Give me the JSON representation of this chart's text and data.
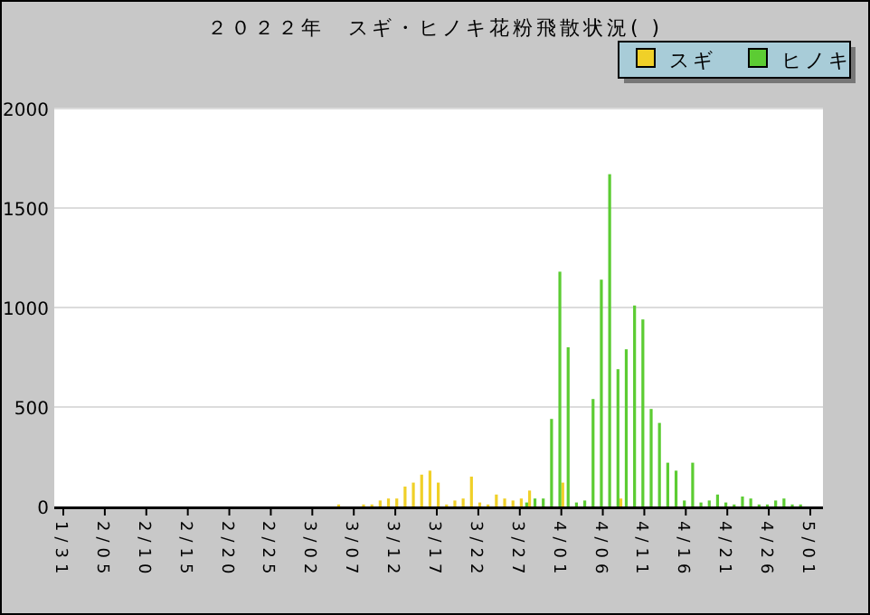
{
  "chart_data": {
    "type": "bar",
    "title": "２０２２年　スギ・ヒノキ花粉飛散状況( )",
    "categories": [
      "1/31",
      null,
      null,
      null,
      null,
      "2/05",
      null,
      null,
      null,
      null,
      "2/10",
      null,
      null,
      null,
      null,
      "2/15",
      null,
      null,
      null,
      null,
      "2/20",
      null,
      null,
      null,
      null,
      "2/25",
      null,
      null,
      null,
      null,
      "3/02",
      null,
      null,
      null,
      null,
      "3/07",
      null,
      null,
      null,
      null,
      "3/12",
      null,
      null,
      null,
      null,
      "3/17",
      null,
      null,
      null,
      null,
      "3/22",
      null,
      null,
      null,
      null,
      "3/27",
      null,
      null,
      null,
      null,
      "4/01",
      null,
      null,
      null,
      null,
      "4/06",
      null,
      null,
      null,
      null,
      "4/11",
      null,
      null,
      null,
      null,
      "4/16",
      null,
      null,
      null,
      null,
      "4/21",
      null,
      null,
      null,
      null,
      "4/26",
      null,
      null,
      null,
      null,
      "5/01"
    ],
    "series": [
      {
        "name": "スギ",
        "color": "#f0d028",
        "values": [
          0,
          0,
          0,
          0,
          0,
          0,
          0,
          0,
          0,
          0,
          0,
          0,
          0,
          0,
          0,
          0,
          0,
          0,
          0,
          0,
          0,
          0,
          0,
          0,
          0,
          0,
          0,
          0,
          0,
          0,
          0,
          0,
          0,
          10,
          0,
          0,
          10,
          10,
          30,
          40,
          40,
          100,
          120,
          160,
          180,
          120,
          10,
          30,
          40,
          150,
          20,
          10,
          60,
          40,
          30,
          40,
          80,
          0,
          0,
          0,
          120,
          0,
          0,
          0,
          0,
          0,
          0,
          40,
          0,
          0,
          0,
          0,
          0,
          0,
          0,
          0,
          0,
          0,
          0,
          0,
          0,
          0,
          0,
          0,
          0,
          0,
          0,
          0,
          0,
          0,
          0
        ]
      },
      {
        "name": "ヒノキ",
        "color": "#5ccc33",
        "values": [
          0,
          0,
          0,
          0,
          0,
          0,
          0,
          0,
          0,
          0,
          0,
          0,
          0,
          0,
          0,
          0,
          0,
          0,
          0,
          0,
          0,
          0,
          0,
          0,
          0,
          0,
          0,
          0,
          0,
          0,
          0,
          0,
          0,
          0,
          0,
          0,
          0,
          0,
          0,
          0,
          0,
          0,
          0,
          0,
          0,
          0,
          0,
          0,
          0,
          0,
          0,
          0,
          0,
          0,
          0,
          0,
          20,
          40,
          40,
          440,
          1180,
          800,
          20,
          30,
          540,
          1140,
          1670,
          690,
          790,
          1010,
          940,
          490,
          420,
          220,
          180,
          30,
          220,
          20,
          30,
          60,
          20,
          10,
          50,
          40,
          10,
          10,
          30,
          40,
          10,
          10,
          0
        ]
      }
    ],
    "ylim": [
      0,
      2000
    ],
    "yticks": [
      0,
      500,
      1000,
      1500,
      2000
    ],
    "grid": "y",
    "legend": "top right"
  }
}
